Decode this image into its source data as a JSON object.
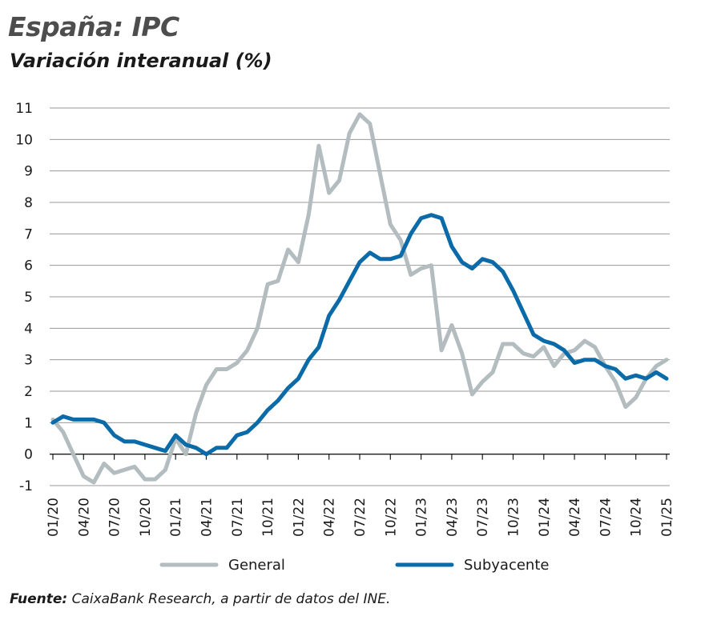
{
  "chart_data": {
    "type": "line",
    "title": "España: IPC",
    "subtitle": "Variación interanual (%)",
    "xlabel": "",
    "ylabel": "",
    "ylim": [
      -1,
      11
    ],
    "yticks": [
      -1,
      0,
      1,
      2,
      3,
      4,
      5,
      6,
      7,
      8,
      9,
      10,
      11
    ],
    "grid": true,
    "legend_position": "bottom",
    "x": [
      "01/20",
      "02/20",
      "03/20",
      "04/20",
      "05/20",
      "06/20",
      "07/20",
      "08/20",
      "09/20",
      "10/20",
      "11/20",
      "12/20",
      "01/21",
      "02/21",
      "03/21",
      "04/21",
      "05/21",
      "06/21",
      "07/21",
      "08/21",
      "09/21",
      "10/21",
      "11/21",
      "12/21",
      "01/22",
      "02/22",
      "03/22",
      "04/22",
      "05/22",
      "06/22",
      "07/22",
      "08/22",
      "09/22",
      "10/22",
      "11/22",
      "12/22",
      "01/23",
      "02/23",
      "03/23",
      "04/23",
      "05/23",
      "06/23",
      "07/23",
      "08/23",
      "09/23",
      "10/23",
      "11/23",
      "12/23",
      "01/24",
      "02/24",
      "03/24",
      "04/24",
      "05/24",
      "06/24",
      "07/24",
      "08/24",
      "09/24",
      "10/24",
      "11/24",
      "12/24",
      "01/25"
    ],
    "x_tick_labels": [
      "01/20",
      "04/20",
      "07/20",
      "10/20",
      "01/21",
      "04/21",
      "07/21",
      "10/21",
      "01/22",
      "04/22",
      "07/22",
      "10/22",
      "01/23",
      "04/23",
      "07/23",
      "10/23",
      "01/24",
      "04/24",
      "07/24",
      "10/24",
      "01/25"
    ],
    "series": [
      {
        "name": "General",
        "color": "#b3bcbf",
        "values": [
          1.1,
          0.7,
          0.0,
          -0.7,
          -0.9,
          -0.3,
          -0.6,
          -0.5,
          -0.4,
          -0.8,
          -0.8,
          -0.5,
          0.5,
          0.0,
          1.3,
          2.2,
          2.7,
          2.7,
          2.9,
          3.3,
          4.0,
          5.4,
          5.5,
          6.5,
          6.1,
          7.6,
          9.8,
          8.3,
          8.7,
          10.2,
          10.8,
          10.5,
          8.9,
          7.3,
          6.8,
          5.7,
          5.9,
          6.0,
          3.3,
          4.1,
          3.2,
          1.9,
          2.3,
          2.6,
          3.5,
          3.5,
          3.2,
          3.1,
          3.4,
          2.8,
          3.2,
          3.3,
          3.6,
          3.4,
          2.8,
          2.3,
          1.5,
          1.8,
          2.4,
          2.8,
          3.0
        ]
      },
      {
        "name": "Subyacente",
        "color": "#0b6aa8",
        "values": [
          1.0,
          1.2,
          1.1,
          1.1,
          1.1,
          1.0,
          0.6,
          0.4,
          0.4,
          0.3,
          0.2,
          0.1,
          0.6,
          0.3,
          0.2,
          0.0,
          0.2,
          0.2,
          0.6,
          0.7,
          1.0,
          1.4,
          1.7,
          2.1,
          2.4,
          3.0,
          3.4,
          4.4,
          4.9,
          5.5,
          6.1,
          6.4,
          6.2,
          6.2,
          6.3,
          7.0,
          7.5,
          7.6,
          7.5,
          6.6,
          6.1,
          5.9,
          6.2,
          6.1,
          5.8,
          5.2,
          4.5,
          3.8,
          3.6,
          3.5,
          3.3,
          2.9,
          3.0,
          3.0,
          2.8,
          2.7,
          2.4,
          2.5,
          2.4,
          2.6,
          2.4
        ]
      }
    ]
  },
  "source": {
    "label": "Fuente:",
    "text": " CaixaBank Research, a partir de datos del INE."
  }
}
